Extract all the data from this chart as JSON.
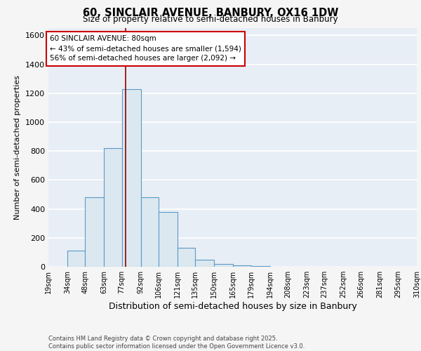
{
  "title_line1": "60, SINCLAIR AVENUE, BANBURY, OX16 1DW",
  "title_line2": "Size of property relative to semi-detached houses in Banbury",
  "xlabel": "Distribution of semi-detached houses by size in Banbury",
  "ylabel": "Number of semi-detached properties",
  "bin_edges": [
    19,
    34,
    48,
    63,
    77,
    92,
    106,
    121,
    135,
    150,
    165,
    179,
    194,
    208,
    223,
    237,
    252,
    266,
    281,
    295,
    310
  ],
  "bar_heights": [
    0,
    110,
    480,
    820,
    1230,
    480,
    380,
    130,
    50,
    20,
    8,
    5,
    2,
    0,
    0,
    0,
    0,
    0,
    0,
    0
  ],
  "bar_color": "#dce8f0",
  "bar_edgecolor": "#5b9ac8",
  "property_size": 80,
  "vline_color": "#8b0000",
  "annotation_title": "60 SINCLAIR AVENUE: 80sqm",
  "annotation_line1": "← 43% of semi-detached houses are smaller (1,594)",
  "annotation_line2": "56% of semi-detached houses are larger (2,092) →",
  "annotation_box_facecolor": "#ffffff",
  "annotation_box_edgecolor": "#cc0000",
  "background_color": "#e8eef5",
  "grid_color": "#ffffff",
  "ylim": [
    0,
    1650
  ],
  "yticks": [
    0,
    200,
    400,
    600,
    800,
    1000,
    1200,
    1400,
    1600
  ],
  "fig_facecolor": "#f5f5f5",
  "footnote_line1": "Contains HM Land Registry data © Crown copyright and database right 2025.",
  "footnote_line2": "Contains public sector information licensed under the Open Government Licence v3.0."
}
